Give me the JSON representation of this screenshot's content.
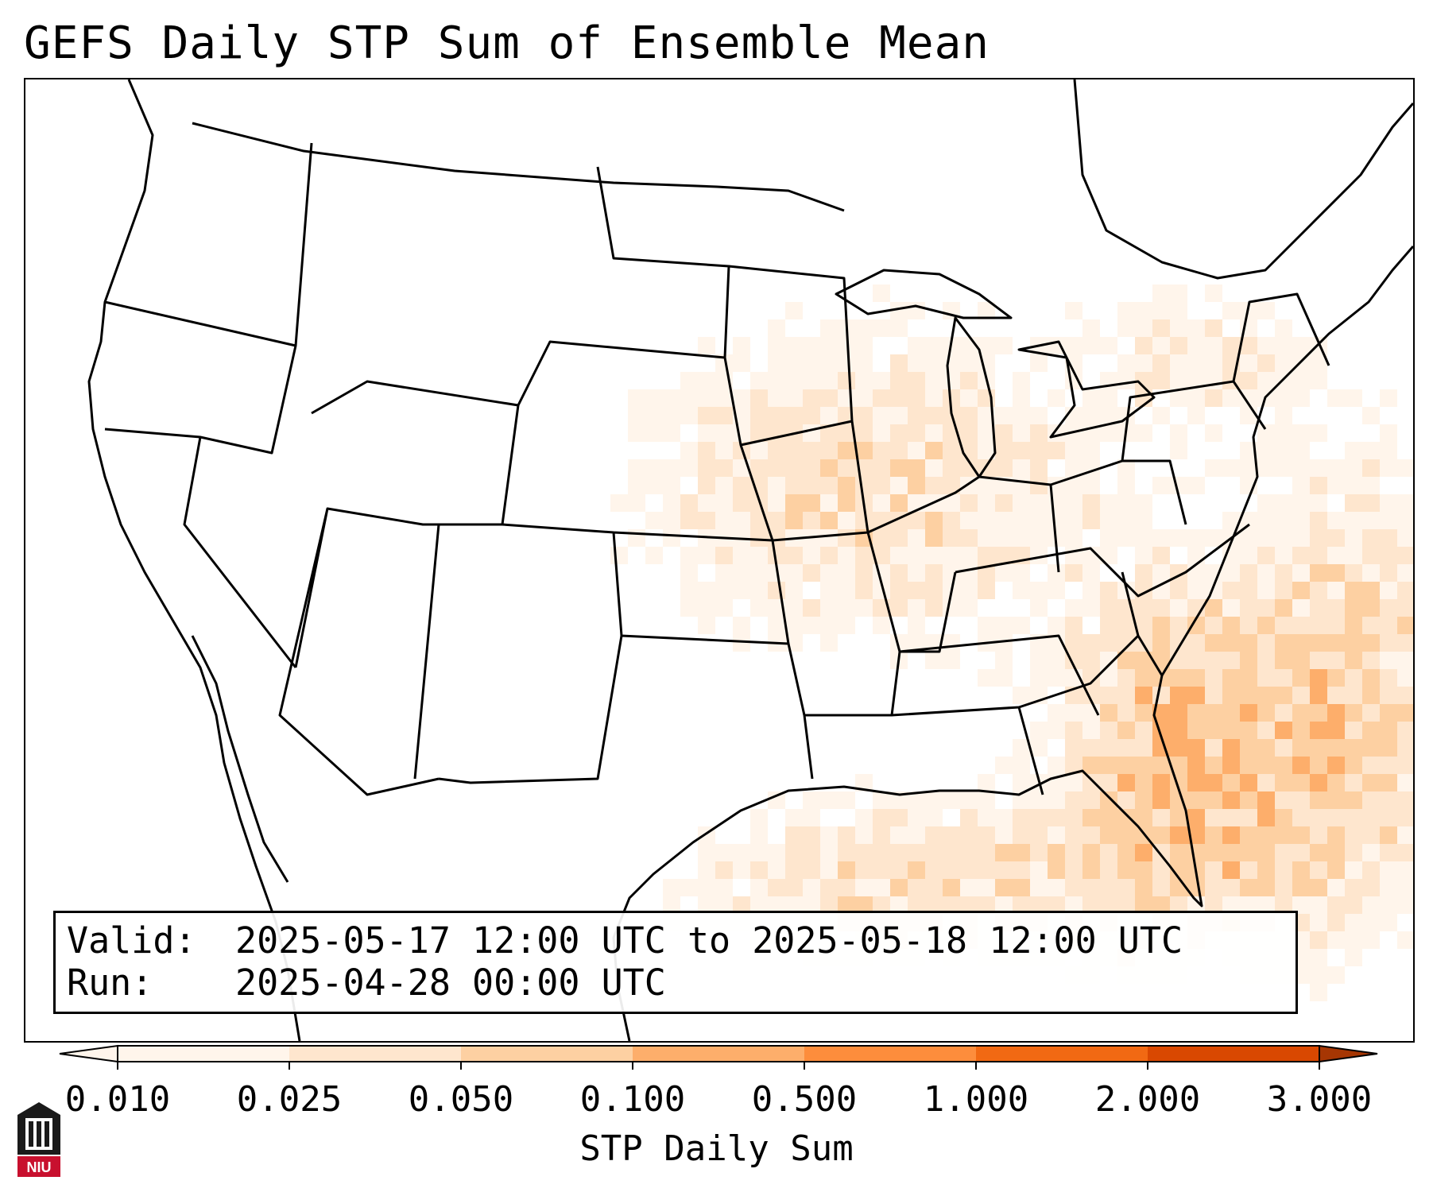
{
  "title": "GEFS Daily STP Sum of Ensemble Mean",
  "info": {
    "valid_label": "Valid:",
    "valid_value": "2025-05-17 12:00 UTC to 2025-05-18 12:00 UTC",
    "run_label": "Run:",
    "run_value": "2025-04-28 00:00 UTC"
  },
  "colorbar": {
    "label": "STP Daily Sum",
    "ticks": [
      "0.010",
      "0.025",
      "0.050",
      "0.100",
      "0.500",
      "1.000",
      "2.000",
      "3.000"
    ],
    "colors": [
      "#fff5eb",
      "#fee6ce",
      "#fdd0a2",
      "#fdae6b",
      "#fd8d3c",
      "#f16913",
      "#d94801",
      "#a63603"
    ],
    "extend": "both"
  },
  "map": {
    "region": "CONUS",
    "field": "STP daily sum shading",
    "border_color": "#000000"
  },
  "logo": {
    "text": "NIU",
    "color": "#c8102e"
  }
}
